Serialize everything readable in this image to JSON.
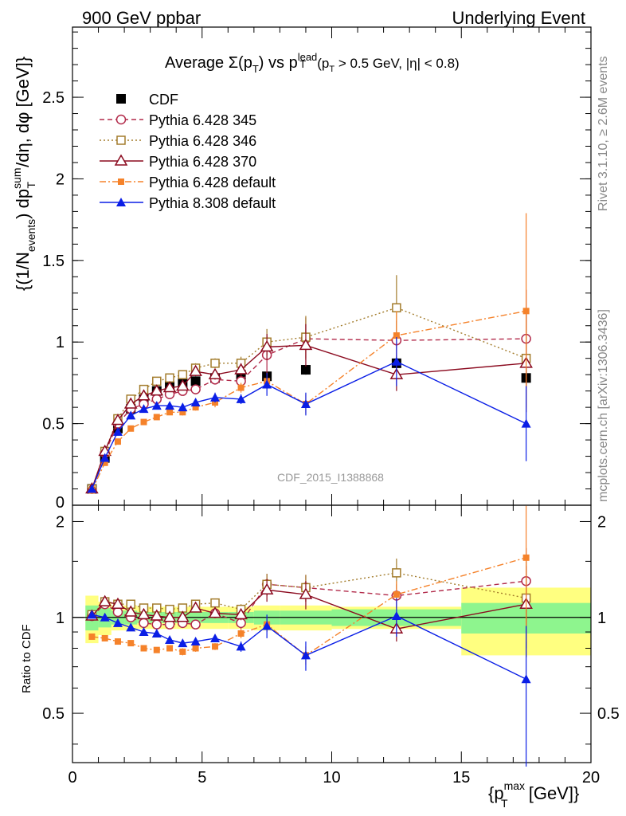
{
  "header": {
    "left": "900 GeV ppbar",
    "right": "Underlying Event"
  },
  "side_text": {
    "rivet": "Rivet 3.1.10, ≥ 2.6M events",
    "mcplots": "mcplots.cern.ch [arXiv:1306.3436]"
  },
  "colors": {
    "cdf": "#000000",
    "p345": "#b22a4a",
    "p346": "#a37c2c",
    "p370": "#8b0a1f",
    "p6def": "#f5822a",
    "p8def": "#0a1ee6",
    "band_inner": "#8ef58e",
    "band_outer": "#ffff80"
  },
  "chart_data": [
    {
      "type": "scatter",
      "title": "Average Σ(p_T) vs p_T^lead (p_T > 0.5 GeV, |η| < 0.8)",
      "title_main": "Average Σ(p",
      "title_T": "T",
      "title_vs": ") vs p",
      "title_lead": "lead",
      "title_rest": "(p",
      "title_cut": " > 0.5 GeV, |η| < 0.8)",
      "ylabel": "{(1/N_events) dp_T^sum/dη, dφ [GeV]}",
      "ylabel_parts": {
        "a": "{(1/N",
        "b": "events",
        "c": ") dp",
        "d": "sum",
        "e": "T",
        "f": "/dη, dφ [GeV]}"
      },
      "watermark": "CDF_2015_I1388868",
      "xlim": [
        0,
        20
      ],
      "ylim": [
        0,
        2.93
      ],
      "y_ticks": [
        0.5,
        1,
        1.5,
        2,
        2.5
      ],
      "y_tick_labels": [
        "0.5",
        "1",
        "1.5",
        "2",
        "2.5"
      ],
      "y_zero_label": "0",
      "x_ticks": [
        0,
        5,
        10,
        15,
        20
      ],
      "legend_placement": "top-left",
      "series": [
        {
          "name": "CDF",
          "key": "cdf",
          "marker": "square-filled",
          "line": "none",
          "x": [
            0.75,
            1.25,
            1.75,
            2.25,
            2.75,
            3.25,
            3.75,
            4.25,
            4.75,
            5.5,
            6.5,
            7.5,
            9,
            12.5,
            17.5
          ],
          "y": [
            0.1,
            0.29,
            0.47,
            0.59,
            0.65,
            0.7,
            0.73,
            0.75,
            0.76,
            0.78,
            0.8,
            0.79,
            0.83,
            0.87,
            0.78
          ],
          "err": [
            0.01,
            0.02,
            0.02,
            0.02,
            0.02,
            0.02,
            0.02,
            0.02,
            0.02,
            0.02,
            0.02,
            0.03,
            0.03,
            0.05,
            0.05
          ]
        },
        {
          "name": "Pythia 6.428 345",
          "key": "p345",
          "marker": "circle-open",
          "line": "dashed",
          "x": [
            0.75,
            1.25,
            1.75,
            2.25,
            2.75,
            3.25,
            3.75,
            4.25,
            4.75,
            5.5,
            6.5,
            7.5,
            9,
            12.5,
            17.5
          ],
          "y": [
            0.1,
            0.32,
            0.5,
            0.59,
            0.62,
            0.65,
            0.68,
            0.7,
            0.71,
            0.77,
            0.76,
            0.92,
            1.02,
            1.01,
            1.02
          ],
          "err": [
            0.01,
            0.02,
            0.02,
            0.02,
            0.02,
            0.02,
            0.02,
            0.02,
            0.03,
            0.03,
            0.04,
            0.12,
            0.13,
            0.12,
            0.3
          ]
        },
        {
          "name": "Pythia 6.428 346",
          "key": "p346",
          "marker": "square-open",
          "line": "dotted",
          "x": [
            0.75,
            1.25,
            1.75,
            2.25,
            2.75,
            3.25,
            3.75,
            4.25,
            4.75,
            5.5,
            6.5,
            7.5,
            9,
            12.5,
            17.5
          ],
          "y": [
            0.1,
            0.33,
            0.53,
            0.65,
            0.71,
            0.76,
            0.78,
            0.8,
            0.84,
            0.87,
            0.87,
            1.0,
            1.03,
            1.21,
            0.9
          ],
          "err": [
            0.01,
            0.02,
            0.02,
            0.02,
            0.02,
            0.02,
            0.02,
            0.02,
            0.03,
            0.03,
            0.04,
            0.08,
            0.13,
            0.2,
            0.3
          ]
        },
        {
          "name": "Pythia 6.428 370",
          "key": "p370",
          "marker": "triangle-open",
          "line": "solid",
          "x": [
            0.75,
            1.25,
            1.75,
            2.25,
            2.75,
            3.25,
            3.75,
            4.25,
            4.75,
            5.5,
            6.5,
            7.5,
            9,
            12.5,
            17.5
          ],
          "y": [
            0.1,
            0.33,
            0.52,
            0.62,
            0.67,
            0.7,
            0.72,
            0.73,
            0.82,
            0.8,
            0.83,
            0.97,
            0.98,
            0.8,
            0.87
          ],
          "err": [
            0.01,
            0.02,
            0.02,
            0.02,
            0.02,
            0.02,
            0.02,
            0.02,
            0.03,
            0.03,
            0.04,
            0.08,
            0.13,
            0.1,
            0.3
          ]
        },
        {
          "name": "Pythia 6.428 default",
          "key": "p6def",
          "marker": "square-filled-small",
          "line": "dashdot",
          "x": [
            0.75,
            1.25,
            1.75,
            2.25,
            2.75,
            3.25,
            3.75,
            4.25,
            4.75,
            5.5,
            6.5,
            7.5,
            9,
            12.5,
            17.5
          ],
          "y": [
            0.09,
            0.26,
            0.39,
            0.47,
            0.51,
            0.54,
            0.57,
            0.57,
            0.6,
            0.63,
            0.72,
            0.76,
            0.62,
            1.04,
            1.19
          ],
          "err": [
            0.01,
            0.01,
            0.01,
            0.01,
            0.01,
            0.01,
            0.01,
            0.02,
            0.02,
            0.03,
            0.03,
            0.05,
            0.06,
            0.15,
            0.6
          ]
        },
        {
          "name": "Pythia 8.308 default",
          "key": "p8def",
          "marker": "triangle-filled",
          "line": "solid",
          "x": [
            0.75,
            1.25,
            1.75,
            2.25,
            2.75,
            3.25,
            3.75,
            4.25,
            4.75,
            5.5,
            6.5,
            7.5,
            9,
            12.5,
            17.5
          ],
          "y": [
            0.1,
            0.29,
            0.45,
            0.55,
            0.59,
            0.61,
            0.61,
            0.6,
            0.63,
            0.66,
            0.65,
            0.74,
            0.62,
            0.88,
            0.5
          ],
          "err": [
            0.01,
            0.01,
            0.01,
            0.01,
            0.01,
            0.01,
            0.01,
            0.02,
            0.02,
            0.03,
            0.03,
            0.07,
            0.07,
            0.15,
            0.23
          ]
        }
      ]
    },
    {
      "type": "scatter",
      "ylabel": "Ratio to CDF",
      "xlabel": "{p_T^max [GeV]}",
      "xlabel_parts": {
        "a": "{p",
        "b": "max",
        "c": "T",
        "d": " [GeV]}"
      },
      "xlim": [
        0,
        20
      ],
      "ylim": [
        0.35,
        2.25
      ],
      "log_y": true,
      "y_ticks": [
        0.5,
        1,
        2
      ],
      "y_tick_labels": [
        "0.5",
        "1",
        "2"
      ],
      "x_ticks": [
        0,
        5,
        10,
        15,
        20
      ],
      "x_tick_labels": [
        "0",
        "5",
        "10",
        "15",
        "20"
      ],
      "bands": {
        "edges": [
          0.5,
          1,
          1.5,
          2,
          2.5,
          3,
          3.5,
          4,
          4.5,
          5,
          6,
          7,
          8,
          10,
          15,
          20
        ],
        "inner": [
          0.09,
          0.07,
          0.05,
          0.05,
          0.04,
          0.04,
          0.04,
          0.04,
          0.04,
          0.04,
          0.04,
          0.05,
          0.05,
          0.06,
          0.11
        ],
        "outer": [
          0.17,
          0.12,
          0.09,
          0.09,
          0.08,
          0.08,
          0.08,
          0.08,
          0.08,
          0.08,
          0.08,
          0.09,
          0.09,
          0.08,
          0.24
        ]
      },
      "series": [
        {
          "key": "p345",
          "marker": "circle-open",
          "line": "dashed",
          "x": [
            0.75,
            1.25,
            1.75,
            2.25,
            2.75,
            3.25,
            3.75,
            4.25,
            4.75,
            5.5,
            6.5,
            7.5,
            9,
            12.5,
            17.5
          ],
          "y": [
            1.01,
            1.1,
            1.04,
            1.0,
            0.96,
            0.95,
            0.95,
            0.96,
            0.95,
            1.03,
            0.96,
            1.27,
            1.24,
            1.17,
            1.3
          ],
          "err": [
            0.01,
            0.02,
            0.02,
            0.02,
            0.02,
            0.02,
            0.02,
            0.02,
            0.02,
            0.03,
            0.04,
            0.1,
            0.12,
            0.1,
            0.35
          ]
        },
        {
          "key": "p346",
          "marker": "square-open",
          "line": "dotted",
          "x": [
            0.75,
            1.25,
            1.75,
            2.25,
            2.75,
            3.25,
            3.75,
            4.25,
            4.75,
            5.5,
            6.5,
            7.5,
            9,
            12.5,
            17.5
          ],
          "y": [
            1.02,
            1.12,
            1.1,
            1.1,
            1.07,
            1.07,
            1.06,
            1.07,
            1.1,
            1.11,
            1.06,
            1.27,
            1.24,
            1.38,
            1.15
          ],
          "err": [
            0.01,
            0.02,
            0.02,
            0.02,
            0.02,
            0.02,
            0.02,
            0.02,
            0.02,
            0.03,
            0.04,
            0.1,
            0.12,
            0.15,
            0.35
          ]
        },
        {
          "key": "p370",
          "marker": "triangle-open",
          "line": "solid",
          "x": [
            0.75,
            1.25,
            1.75,
            2.25,
            2.75,
            3.25,
            3.75,
            4.25,
            4.75,
            5.5,
            6.5,
            7.5,
            9,
            12.5,
            17.5
          ],
          "y": [
            1.01,
            1.12,
            1.1,
            1.04,
            1.02,
            1.01,
            1.0,
            1.0,
            1.07,
            1.03,
            1.02,
            1.22,
            1.18,
            0.92,
            1.1
          ],
          "err": [
            0.01,
            0.02,
            0.02,
            0.02,
            0.02,
            0.02,
            0.02,
            0.02,
            0.02,
            0.03,
            0.04,
            0.1,
            0.12,
            0.08,
            0.35
          ]
        },
        {
          "key": "p6def",
          "marker": "square-filled-small",
          "line": "dashdot",
          "x": [
            0.75,
            1.25,
            1.75,
            2.25,
            2.75,
            3.25,
            3.75,
            4.25,
            4.75,
            5.5,
            6.5,
            7.5,
            9,
            12.5,
            17.5
          ],
          "y": [
            0.87,
            0.86,
            0.84,
            0.83,
            0.8,
            0.79,
            0.8,
            0.78,
            0.8,
            0.81,
            0.89,
            0.95,
            0.76,
            1.18,
            1.54
          ],
          "err": [
            0.01,
            0.01,
            0.01,
            0.01,
            0.01,
            0.01,
            0.01,
            0.02,
            0.02,
            0.02,
            0.03,
            0.05,
            0.05,
            0.12,
            0.7
          ]
        },
        {
          "key": "p8def",
          "marker": "triangle-filled",
          "line": "solid",
          "x": [
            0.75,
            1.25,
            1.75,
            2.25,
            2.75,
            3.25,
            3.75,
            4.25,
            4.75,
            5.5,
            6.5,
            7.5,
            9,
            12.5,
            17.5
          ],
          "y": [
            1.02,
            1.0,
            0.96,
            0.93,
            0.9,
            0.89,
            0.85,
            0.83,
            0.84,
            0.86,
            0.81,
            0.94,
            0.76,
            1.01,
            0.64
          ],
          "err": [
            0.01,
            0.01,
            0.01,
            0.01,
            0.01,
            0.01,
            0.01,
            0.02,
            0.02,
            0.02,
            0.03,
            0.08,
            0.08,
            0.14,
            0.3
          ]
        }
      ]
    }
  ]
}
